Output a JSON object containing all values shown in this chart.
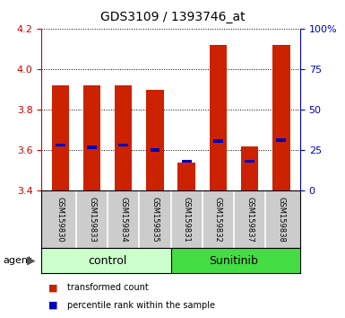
{
  "title": "GDS3109 / 1393746_at",
  "samples": [
    "GSM159830",
    "GSM159833",
    "GSM159834",
    "GSM159835",
    "GSM159831",
    "GSM159832",
    "GSM159837",
    "GSM159838"
  ],
  "groups": [
    "control",
    "control",
    "control",
    "control",
    "Sunitinib",
    "Sunitinib",
    "Sunitinib",
    "Sunitinib"
  ],
  "red_values": [
    3.92,
    3.92,
    3.92,
    3.9,
    3.54,
    4.12,
    3.62,
    4.12
  ],
  "blue_values": [
    3.625,
    3.615,
    3.625,
    3.6,
    3.545,
    3.645,
    3.545,
    3.65
  ],
  "ylim": [
    3.4,
    4.2
  ],
  "yticks_left": [
    3.4,
    3.6,
    3.8,
    4.0,
    4.2
  ],
  "yticks_right": [
    0,
    25,
    50,
    75,
    100
  ],
  "ytick_labels_right": [
    "0",
    "25",
    "50",
    "75",
    "100%"
  ],
  "ylabel_left_color": "#cc0000",
  "ylabel_right_color": "#0000bb",
  "bar_color": "#cc2200",
  "blue_color": "#0000bb",
  "grid_color": "black",
  "plot_bg": "white",
  "tick_label_area_color": "#cccccc",
  "control_color": "#ccffcc",
  "sunitinib_color": "#44dd44",
  "legend_items": [
    {
      "color": "#cc2200",
      "label": "transformed count"
    },
    {
      "color": "#0000bb",
      "label": "percentile rank within the sample"
    }
  ]
}
